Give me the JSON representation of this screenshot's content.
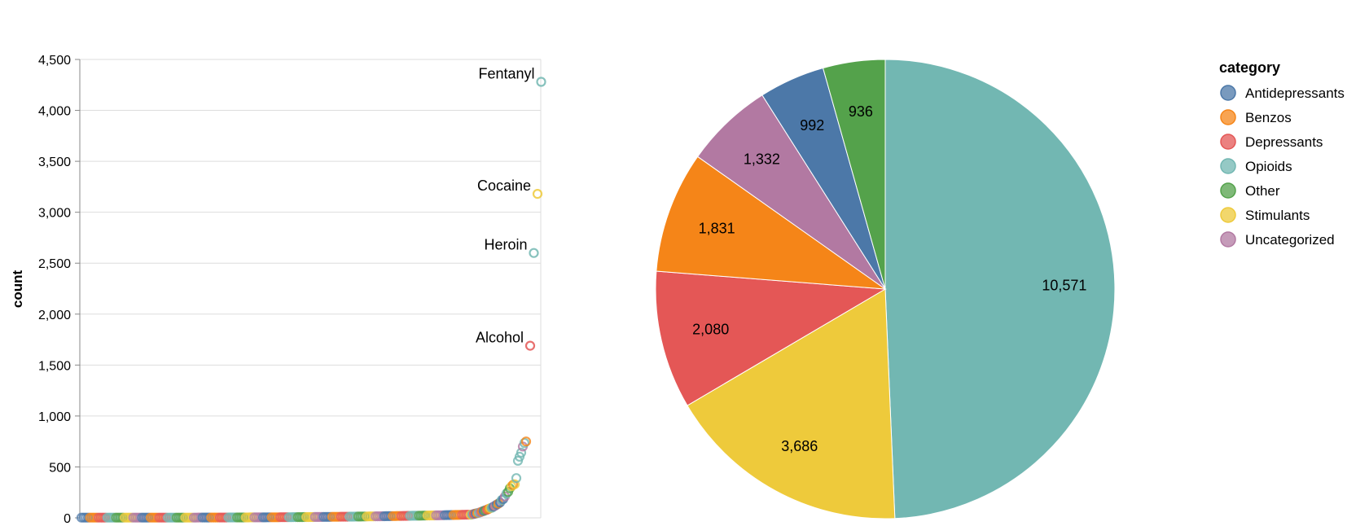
{
  "colors": {
    "Antidepressants": "#4c78a8",
    "Benzos": "#f58518",
    "Depressants": "#e45756",
    "Opioids": "#72b7b2",
    "Other": "#54a24b",
    "Stimulants": "#eeca3b",
    "Uncategorized": "#b279a2"
  },
  "chart_data": [
    {
      "type": "scatter",
      "ylabel": "count",
      "ylim": [
        0,
        4500
      ],
      "yticks": [
        "0",
        "500",
        "1,000",
        "1,500",
        "2,000",
        "2,500",
        "3,000",
        "3,500",
        "4,000",
        "4,500"
      ],
      "ytick_values": [
        0,
        500,
        1000,
        1500,
        2000,
        2500,
        3000,
        3500,
        4000,
        4500
      ],
      "grid": true,
      "annotated_points": [
        {
          "label": "Fentanyl",
          "category": "Opioids",
          "count": 4280
        },
        {
          "label": "Cocaine",
          "category": "Stimulants",
          "count": 3180
        },
        {
          "label": "Heroin",
          "category": "Opioids",
          "count": 2600
        },
        {
          "label": "Alcohol",
          "category": "Depressants",
          "count": 1690
        }
      ],
      "tail_points": [
        {
          "category": "Benzos",
          "count": 750
        },
        {
          "category": "Opioids",
          "count": 735
        },
        {
          "category": "Uncategorized",
          "count": 700
        },
        {
          "category": "Opioids",
          "count": 640
        },
        {
          "category": "Opioids",
          "count": 600
        },
        {
          "category": "Opioids",
          "count": 560
        },
        {
          "category": "Opioids",
          "count": 390
        },
        {
          "category": "Stimulants",
          "count": 330
        },
        {
          "category": "Benzos",
          "count": 325
        },
        {
          "category": "Stimulants",
          "count": 310
        },
        {
          "category": "Other",
          "count": 290
        },
        {
          "category": "Other",
          "count": 255
        },
        {
          "category": "Opioids",
          "count": 240
        },
        {
          "category": "Uncategorized",
          "count": 210
        },
        {
          "category": "Antidepressants",
          "count": 185
        },
        {
          "category": "Opioids",
          "count": 175
        },
        {
          "category": "Antidepressants",
          "count": 150
        },
        {
          "category": "Benzos",
          "count": 140
        },
        {
          "category": "Antidepressants",
          "count": 130
        },
        {
          "category": "Uncategorized",
          "count": 120
        },
        {
          "category": "Antidepressants",
          "count": 110
        },
        {
          "category": "Opioids",
          "count": 100
        },
        {
          "category": "Stimulants",
          "count": 95
        },
        {
          "category": "Benzos",
          "count": 88
        },
        {
          "category": "Depressants",
          "count": 80
        },
        {
          "category": "Other",
          "count": 74
        },
        {
          "category": "Antidepressants",
          "count": 68
        },
        {
          "category": "Benzos",
          "count": 62
        },
        {
          "category": "Uncategorized",
          "count": 56
        },
        {
          "category": "Opioids",
          "count": 50
        },
        {
          "category": "Benzos",
          "count": 46
        },
        {
          "category": "Antidepressants",
          "count": 42
        },
        {
          "category": "Depressants",
          "count": 38
        },
        {
          "category": "Opioids",
          "count": 34
        },
        {
          "category": "Stimulants",
          "count": 30
        }
      ],
      "low_count_points": 180
    },
    {
      "type": "pie",
      "slices": [
        {
          "category": "Opioids",
          "value": 10571,
          "label": "10,571"
        },
        {
          "category": "Stimulants",
          "value": 3686,
          "label": "3,686"
        },
        {
          "category": "Depressants",
          "value": 2080,
          "label": "2,080"
        },
        {
          "category": "Benzos",
          "value": 1831,
          "label": "1,831"
        },
        {
          "category": "Uncategorized",
          "value": 1332,
          "label": "1,332"
        },
        {
          "category": "Antidepressants",
          "value": 992,
          "label": "992"
        },
        {
          "category": "Other",
          "value": 936,
          "label": "936"
        }
      ]
    }
  ],
  "legend": {
    "title": "category",
    "items": [
      "Antidepressants",
      "Benzos",
      "Depressants",
      "Opioids",
      "Other",
      "Stimulants",
      "Uncategorized"
    ]
  }
}
